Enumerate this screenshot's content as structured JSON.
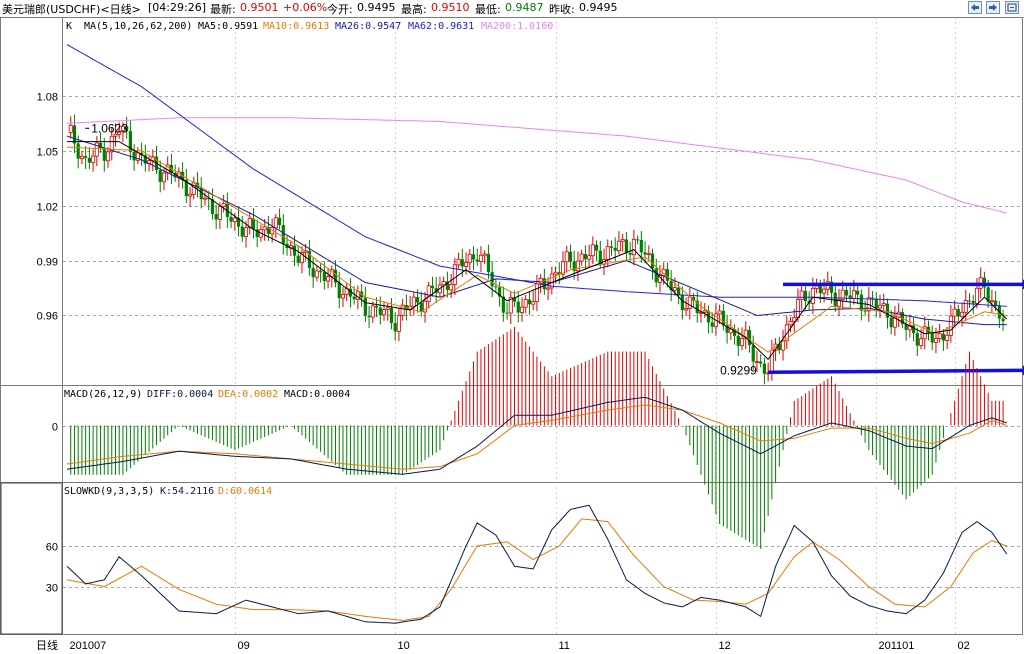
{
  "header": {
    "symbol": "美元瑞郎(USDCHF)<日线>",
    "time": "[04:29:26]",
    "last_label": "最新:",
    "last_value": "0.9501",
    "change": "+0.06%",
    "open_label": "今开:",
    "open_value": "0.9495",
    "high_label": "最高:",
    "high_value": "0.9510",
    "low_label": "最低:",
    "low_value": "0.9487",
    "prev_label": "昨收:",
    "prev_value": "0.9495"
  },
  "window_buttons": [
    "back-icon",
    "forward-icon",
    "expand-icon"
  ],
  "colors": {
    "up": "#e00000",
    "down": "#008000",
    "ma5": "#000000",
    "ma10": "#e87a00",
    "ma26": "#1a1a9a",
    "ma62": "#2020d8",
    "ma200": "#ee82ee",
    "diff": "#0a1a4a",
    "dea": "#e87a00",
    "kline": "#0a1a4a",
    "dline": "#e87a00",
    "grid": "#8c8c8c",
    "arrow": "#1010e0"
  },
  "main_panel": {
    "k_label": "K",
    "ma_params": "MA(5,10,26,62,200)",
    "ma5": "MA5:0.9591",
    "ma10": "MA10:0.9613",
    "ma26": "MA26:0.9547",
    "ma62": "MA62:0.9631",
    "ma200": "MA200:1.0160",
    "high_annotation": "1.0623",
    "low_annotation": "0.9299"
  },
  "macd_panel": {
    "params": "MACD(26,12,9)",
    "diff": "DIFF:0.0004",
    "dea": "DEA:0.0002",
    "macd": "MACD:0.0004",
    "zero_label": "0"
  },
  "kd_panel": {
    "params": "SLOWKD(9,3,3,5)",
    "k": "K:54.2116",
    "d": "D:60.0614"
  },
  "chart_data": {
    "type": "candlestick",
    "period_label": "日线",
    "x_tick_labels": [
      "201007",
      "09",
      "10",
      "11",
      "12",
      "201101",
      "02"
    ],
    "y_ticks": [
      "1.08",
      "1.05",
      "1.02",
      "0.99",
      "0.96"
    ],
    "y_range": [
      0.922,
      1.122
    ],
    "price_path": [
      [
        0,
        1.06
      ],
      [
        5,
        1.045
      ],
      [
        10,
        1.05
      ],
      [
        14,
        1.062
      ],
      [
        20,
        1.045
      ],
      [
        30,
        1.035
      ],
      [
        40,
        1.018
      ],
      [
        50,
        1.005
      ],
      [
        55,
        1.01
      ],
      [
        62,
        0.992
      ],
      [
        70,
        0.98
      ],
      [
        80,
        0.965
      ],
      [
        88,
        0.958
      ],
      [
        92,
        0.965
      ],
      [
        100,
        0.975
      ],
      [
        107,
        0.99
      ],
      [
        110,
        0.995
      ],
      [
        115,
        0.975
      ],
      [
        118,
        0.962
      ],
      [
        125,
        0.97
      ],
      [
        130,
        0.982
      ],
      [
        135,
        0.99
      ],
      [
        145,
        0.995
      ],
      [
        152,
        1.0
      ],
      [
        158,
        0.985
      ],
      [
        162,
        0.975
      ],
      [
        167,
        0.965
      ],
      [
        172,
        0.96
      ],
      [
        176,
        0.955
      ],
      [
        182,
        0.945
      ],
      [
        186,
        0.933
      ],
      [
        188,
        0.93
      ],
      [
        192,
        0.95
      ],
      [
        196,
        0.965
      ],
      [
        200,
        0.975
      ],
      [
        205,
        0.972
      ],
      [
        210,
        0.97
      ],
      [
        215,
        0.967
      ],
      [
        220,
        0.962
      ],
      [
        225,
        0.953
      ],
      [
        230,
        0.948
      ],
      [
        233,
        0.947
      ],
      [
        237,
        0.955
      ],
      [
        242,
        0.97
      ],
      [
        246,
        0.975
      ],
      [
        250,
        0.962
      ],
      [
        252,
        0.952
      ]
    ],
    "ma5_path": [
      [
        0,
        1.055
      ],
      [
        14,
        1.055
      ],
      [
        30,
        1.036
      ],
      [
        50,
        1.007
      ],
      [
        62,
        0.995
      ],
      [
        80,
        0.967
      ],
      [
        92,
        0.963
      ],
      [
        107,
        0.985
      ],
      [
        118,
        0.968
      ],
      [
        130,
        0.978
      ],
      [
        152,
        0.996
      ],
      [
        165,
        0.968
      ],
      [
        182,
        0.948
      ],
      [
        188,
        0.936
      ],
      [
        200,
        0.97
      ],
      [
        215,
        0.966
      ],
      [
        230,
        0.95
      ],
      [
        237,
        0.952
      ],
      [
        246,
        0.97
      ],
      [
        252,
        0.958
      ]
    ],
    "ma10_path": [
      [
        0,
        1.052
      ],
      [
        20,
        1.05
      ],
      [
        40,
        1.025
      ],
      [
        62,
        0.998
      ],
      [
        80,
        0.97
      ],
      [
        95,
        0.962
      ],
      [
        110,
        0.982
      ],
      [
        120,
        0.972
      ],
      [
        135,
        0.985
      ],
      [
        155,
        0.992
      ],
      [
        170,
        0.965
      ],
      [
        188,
        0.94
      ],
      [
        205,
        0.965
      ],
      [
        220,
        0.962
      ],
      [
        233,
        0.95
      ],
      [
        246,
        0.962
      ],
      [
        252,
        0.96
      ]
    ],
    "ma26_path": [
      [
        0,
        1.058
      ],
      [
        20,
        1.045
      ],
      [
        50,
        1.015
      ],
      [
        80,
        0.978
      ],
      [
        100,
        0.97
      ],
      [
        115,
        0.98
      ],
      [
        130,
        0.978
      ],
      [
        150,
        0.99
      ],
      [
        170,
        0.973
      ],
      [
        185,
        0.96
      ],
      [
        200,
        0.963
      ],
      [
        215,
        0.964
      ],
      [
        230,
        0.958
      ],
      [
        246,
        0.955
      ],
      [
        252,
        0.955
      ]
    ],
    "ma62_path": [
      [
        0,
        1.108
      ],
      [
        20,
        1.085
      ],
      [
        50,
        1.04
      ],
      [
        80,
        1.003
      ],
      [
        100,
        0.987
      ],
      [
        130,
        0.976
      ],
      [
        150,
        0.973
      ],
      [
        175,
        0.97
      ],
      [
        200,
        0.97
      ],
      [
        230,
        0.968
      ],
      [
        252,
        0.965
      ]
    ],
    "ma200_path": [
      [
        0,
        1.065
      ],
      [
        30,
        1.068
      ],
      [
        60,
        1.068
      ],
      [
        100,
        1.066
      ],
      [
        150,
        1.058
      ],
      [
        200,
        1.045
      ],
      [
        225,
        1.034
      ],
      [
        240,
        1.022
      ],
      [
        252,
        1.016
      ]
    ],
    "annotations": [
      {
        "text": "1.0623",
        "day": 14,
        "price": 1.0623
      },
      {
        "text": "0.9299",
        "day": 188,
        "price": 0.9299
      }
    ],
    "arrows": [
      {
        "from": [
          192,
          0.977
        ],
        "to": [
          252,
          0.977
        ]
      },
      {
        "from": [
          188,
          0.929
        ],
        "to": [
          252,
          0.93
        ]
      }
    ],
    "macd_diff_path": [
      [
        0,
        -0.017
      ],
      [
        15,
        -0.014
      ],
      [
        30,
        -0.01
      ],
      [
        45,
        -0.012
      ],
      [
        60,
        -0.013
      ],
      [
        75,
        -0.017
      ],
      [
        90,
        -0.019
      ],
      [
        100,
        -0.017
      ],
      [
        110,
        -0.008
      ],
      [
        120,
        0.004
      ],
      [
        130,
        0.004
      ],
      [
        145,
        0.009
      ],
      [
        155,
        0.011
      ],
      [
        165,
        0.006
      ],
      [
        175,
        -0.003
      ],
      [
        186,
        -0.011
      ],
      [
        195,
        -0.004
      ],
      [
        205,
        0.001
      ],
      [
        215,
        -0.002
      ],
      [
        225,
        -0.008
      ],
      [
        232,
        -0.009
      ],
      [
        242,
        0.0
      ],
      [
        248,
        0.003
      ],
      [
        252,
        0.001
      ]
    ],
    "macd_dea_path": [
      [
        0,
        -0.015
      ],
      [
        15,
        -0.012
      ],
      [
        30,
        -0.01
      ],
      [
        45,
        -0.011
      ],
      [
        60,
        -0.013
      ],
      [
        75,
        -0.015
      ],
      [
        90,
        -0.017
      ],
      [
        100,
        -0.016
      ],
      [
        110,
        -0.011
      ],
      [
        120,
        0.0
      ],
      [
        130,
        0.002
      ],
      [
        145,
        0.006
      ],
      [
        155,
        0.008
      ],
      [
        165,
        0.006
      ],
      [
        175,
        0.001
      ],
      [
        186,
        -0.006
      ],
      [
        195,
        -0.005
      ],
      [
        205,
        -0.001
      ],
      [
        215,
        -0.001
      ],
      [
        225,
        -0.005
      ],
      [
        232,
        -0.007
      ],
      [
        242,
        -0.003
      ],
      [
        248,
        0.002
      ],
      [
        252,
        0.0
      ]
    ],
    "macd_range": [
      -0.022,
      0.015
    ],
    "kd_ticks": [
      "60",
      "30"
    ],
    "kd_range": [
      -5,
      105
    ],
    "slowk_path": [
      [
        0,
        45
      ],
      [
        5,
        32
      ],
      [
        10,
        35
      ],
      [
        14,
        52
      ],
      [
        20,
        38
      ],
      [
        30,
        12
      ],
      [
        40,
        10
      ],
      [
        48,
        20
      ],
      [
        55,
        15
      ],
      [
        62,
        10
      ],
      [
        70,
        12
      ],
      [
        80,
        4
      ],
      [
        88,
        3
      ],
      [
        95,
        6
      ],
      [
        100,
        15
      ],
      [
        107,
        60
      ],
      [
        110,
        77
      ],
      [
        115,
        68
      ],
      [
        120,
        45
      ],
      [
        125,
        43
      ],
      [
        130,
        72
      ],
      [
        135,
        87
      ],
      [
        140,
        90
      ],
      [
        145,
        65
      ],
      [
        150,
        35
      ],
      [
        155,
        25
      ],
      [
        160,
        18
      ],
      [
        165,
        15
      ],
      [
        170,
        22
      ],
      [
        175,
        20
      ],
      [
        182,
        15
      ],
      [
        186,
        8
      ],
      [
        190,
        45
      ],
      [
        195,
        75
      ],
      [
        200,
        63
      ],
      [
        205,
        38
      ],
      [
        210,
        23
      ],
      [
        215,
        16
      ],
      [
        220,
        12
      ],
      [
        225,
        10
      ],
      [
        230,
        20
      ],
      [
        235,
        40
      ],
      [
        240,
        70
      ],
      [
        244,
        78
      ],
      [
        248,
        70
      ],
      [
        252,
        54
      ]
    ],
    "slowd_path": [
      [
        0,
        35
      ],
      [
        10,
        30
      ],
      [
        20,
        45
      ],
      [
        30,
        28
      ],
      [
        40,
        17
      ],
      [
        50,
        13
      ],
      [
        60,
        13
      ],
      [
        70,
        12
      ],
      [
        80,
        8
      ],
      [
        90,
        5
      ],
      [
        97,
        8
      ],
      [
        103,
        28
      ],
      [
        110,
        60
      ],
      [
        118,
        63
      ],
      [
        125,
        50
      ],
      [
        132,
        60
      ],
      [
        138,
        80
      ],
      [
        145,
        78
      ],
      [
        152,
        53
      ],
      [
        160,
        30
      ],
      [
        168,
        20
      ],
      [
        175,
        19
      ],
      [
        182,
        17
      ],
      [
        188,
        25
      ],
      [
        195,
        52
      ],
      [
        200,
        63
      ],
      [
        207,
        50
      ],
      [
        215,
        30
      ],
      [
        222,
        17
      ],
      [
        230,
        15
      ],
      [
        237,
        30
      ],
      [
        243,
        55
      ],
      [
        248,
        64
      ],
      [
        252,
        60
      ]
    ]
  }
}
